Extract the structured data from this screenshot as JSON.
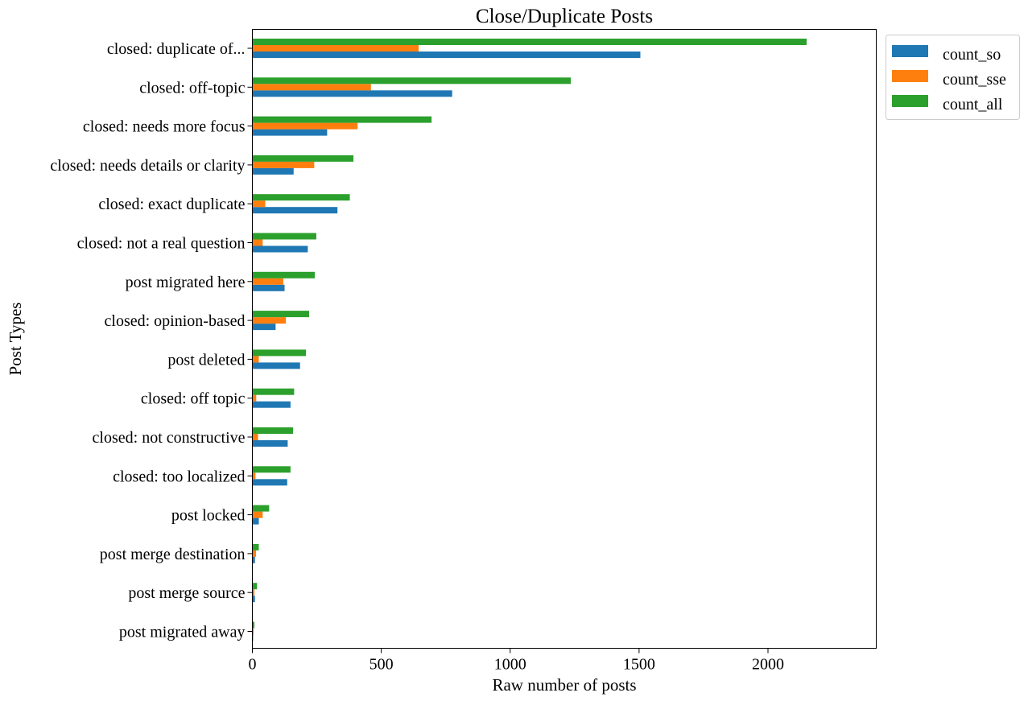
{
  "chart_data": {
    "type": "bar",
    "orientation": "horizontal",
    "title": "Close/Duplicate Posts",
    "xlabel": "Raw number of posts",
    "ylabel": "Post Types",
    "xlim": [
      0,
      2420
    ],
    "xticks": [
      0,
      500,
      1000,
      1500,
      2000
    ],
    "grid": false,
    "legend_position": "outside-top-right",
    "categories": [
      "closed: duplicate of...",
      "closed: off-topic",
      "closed: needs more focus",
      "closed: needs details or clarity",
      "closed: exact duplicate",
      "closed: not a real question",
      "post migrated here",
      "closed: opinion-based",
      "post deleted",
      "closed: off topic",
      "closed: not constructive",
      "closed: too localized",
      "post locked",
      "post merge destination",
      "post merge source",
      "post migrated away"
    ],
    "series": [
      {
        "name": "count_so",
        "color": "#1f77b4",
        "values": [
          1505,
          775,
          290,
          160,
          330,
          215,
          125,
          90,
          185,
          148,
          137,
          135,
          25,
          10,
          10,
          3
        ]
      },
      {
        "name": "count_sse",
        "color": "#ff7f0e",
        "values": [
          645,
          460,
          408,
          240,
          50,
          40,
          120,
          130,
          25,
          15,
          22,
          12,
          40,
          14,
          8,
          5
        ]
      },
      {
        "name": "count_all",
        "color": "#2ca02c",
        "values": [
          2150,
          1235,
          695,
          392,
          378,
          248,
          242,
          220,
          208,
          162,
          158,
          148,
          65,
          25,
          18,
          8
        ]
      }
    ]
  }
}
